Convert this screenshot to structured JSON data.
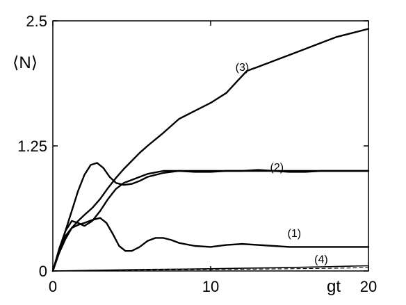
{
  "chart_data": {
    "type": "line",
    "xlabel": "gt",
    "ylabel": "⟨N⟩",
    "xlim": [
      0,
      20
    ],
    "ylim": [
      0,
      2.5
    ],
    "x_ticks": [
      "0",
      "10",
      "20"
    ],
    "y_ticks": [
      "0",
      "1.25",
      "2.5"
    ],
    "x_tick_values": [
      0,
      10,
      20
    ],
    "y_tick_values": [
      0,
      1.25,
      2.5
    ],
    "grid": false,
    "legend": "none",
    "series": [
      {
        "label": "(1)",
        "label_anchor": {
          "x": 15.3,
          "y": 0.34
        },
        "x": [
          0,
          0.4,
          0.8,
          1.2,
          1.6,
          2.0,
          2.5,
          3.0,
          3.4,
          3.8,
          4.2,
          4.6,
          5.0,
          5.5,
          6.0,
          6.5,
          7.0,
          7.5,
          8.0,
          9.0,
          10.0,
          11.0,
          12.0,
          13.0,
          14.0,
          15.0,
          16.0,
          17.0,
          18.0,
          19.0,
          20.0
        ],
        "y": [
          0,
          0.2,
          0.35,
          0.43,
          0.46,
          0.48,
          0.51,
          0.53,
          0.48,
          0.37,
          0.25,
          0.2,
          0.2,
          0.24,
          0.3,
          0.33,
          0.33,
          0.31,
          0.28,
          0.25,
          0.24,
          0.26,
          0.27,
          0.26,
          0.25,
          0.24,
          0.24,
          0.24,
          0.24,
          0.24,
          0.24
        ]
      },
      {
        "label": "(2)",
        "label_anchor": {
          "x": 14.2,
          "y": 1.0
        },
        "x": [
          0,
          0.4,
          0.8,
          1.2,
          1.6,
          2.0,
          2.5,
          3.0,
          3.5,
          4.0,
          4.5,
          5.0,
          5.5,
          6.0,
          7.0,
          8.0,
          9.0,
          10.0,
          11.0,
          12.0,
          13.0,
          14.0,
          15.0,
          16.0,
          17.0,
          18.0,
          19.0,
          20.0
        ],
        "y": [
          0,
          0.22,
          0.4,
          0.5,
          0.48,
          0.45,
          0.5,
          0.6,
          0.72,
          0.82,
          0.88,
          0.91,
          0.94,
          0.97,
          1.0,
          1.0,
          0.99,
          0.99,
          1.0,
          1.0,
          1.01,
          1.0,
          0.99,
          0.99,
          1.0,
          1.0,
          1.0,
          1.0
        ]
      },
      {
        "label": "(3)",
        "label_anchor": {
          "x": 12.0,
          "y": 2.0
        },
        "x": [
          0,
          0.4,
          0.8,
          1.2,
          1.6,
          2.0,
          2.5,
          3.0,
          3.5,
          4.0,
          4.5,
          5.0,
          5.5,
          6.0,
          7.0,
          8.0,
          9.0,
          10.0,
          11.0,
          11.7,
          12.3,
          13.0,
          14.0,
          15.0,
          16.0,
          17.0,
          18.0,
          19.0,
          20.0
        ],
        "y": [
          0,
          0.18,
          0.32,
          0.43,
          0.5,
          0.56,
          0.63,
          0.72,
          0.83,
          0.93,
          1.02,
          1.1,
          1.18,
          1.25,
          1.38,
          1.52,
          1.6,
          1.68,
          1.78,
          1.9,
          2.0,
          2.04,
          2.1,
          2.16,
          2.22,
          2.28,
          2.34,
          2.38,
          2.42
        ]
      },
      {
        "label": "(4)",
        "label_anchor": {
          "x": 17.0,
          "y": 0.08
        },
        "x": [
          0,
          2,
          4,
          6,
          8,
          10,
          12,
          14,
          16,
          18,
          20
        ],
        "y": [
          0,
          0.005,
          0.01,
          0.015,
          0.018,
          0.022,
          0.027,
          0.032,
          0.038,
          0.045,
          0.052
        ]
      },
      {
        "label": "(4) dashed",
        "x": [
          0,
          2,
          4,
          6,
          8,
          10,
          12,
          14,
          16,
          18,
          20
        ],
        "y": [
          0,
          0.003,
          0.006,
          0.009,
          0.011,
          0.014,
          0.017,
          0.02,
          0.024,
          0.028,
          0.033
        ]
      },
      {
        "label": "peak",
        "x": [
          0,
          0.4,
          0.8,
          1.2,
          1.6,
          2.0,
          2.4,
          2.8,
          3.2,
          3.6,
          4.0,
          4.5,
          5.0,
          5.5,
          6.0,
          7.0,
          8.0,
          9.0,
          10.0,
          11.0,
          12.0,
          13.0,
          14.0,
          15.0,
          16.0,
          17.0,
          18.0,
          19.0,
          20.0
        ],
        "y": [
          0,
          0.2,
          0.4,
          0.6,
          0.8,
          0.96,
          1.06,
          1.08,
          1.03,
          0.94,
          0.88,
          0.86,
          0.87,
          0.9,
          0.94,
          0.98,
          1.0,
          1.0,
          1.0,
          1.0,
          1.0,
          1.0,
          1.0,
          1.0,
          1.0,
          1.0,
          1.0,
          1.0,
          1.0
        ]
      }
    ]
  }
}
